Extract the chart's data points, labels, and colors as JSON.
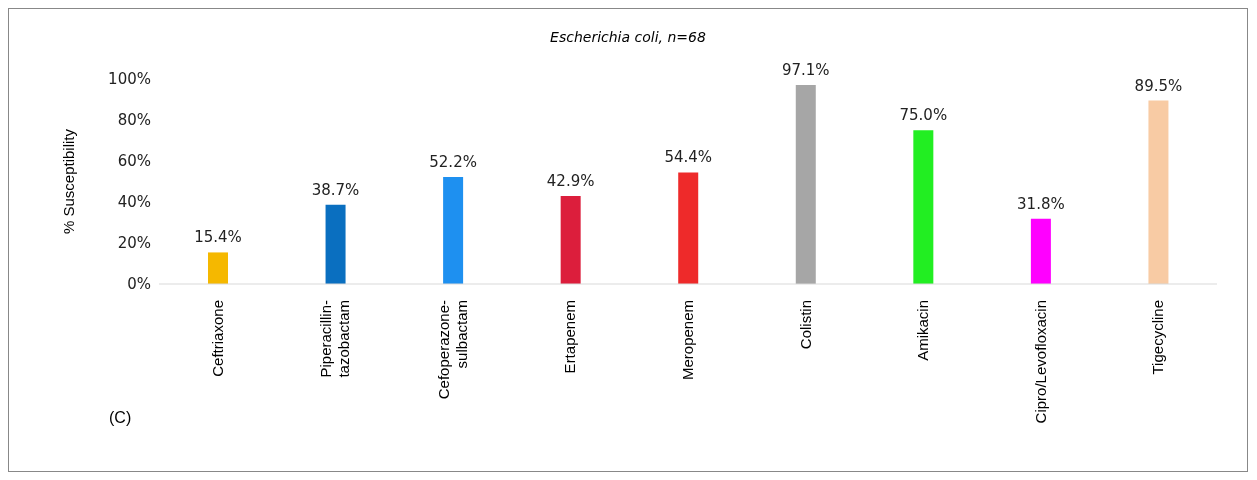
{
  "chart_data": {
    "type": "bar",
    "title": "Escherichia coli, n=68",
    "ylabel": "% Susceptibility",
    "categories": [
      "Ceftriaxone",
      "Piperacillin-tazobactam",
      "Cefoperazone-sulbactam",
      "Ertapenem",
      "Meropenem",
      "Colistin",
      "Amikacin",
      "Cipro/Levofloxacin",
      "Tigecycline"
    ],
    "values": [
      15.4,
      38.7,
      52.2,
      42.9,
      54.4,
      97.1,
      75.0,
      31.8,
      89.5
    ],
    "value_labels": [
      "15.4%",
      "38.7%",
      "52.2%",
      "42.9%",
      "54.4%",
      "97.1%",
      "75.0%",
      "31.8%",
      "89.5%"
    ],
    "colors": [
      "#f5b800",
      "#0a6fc0",
      "#1e90f0",
      "#dc1e3c",
      "#ee2a2a",
      "#a6a6a6",
      "#22ee22",
      "#ff00ff",
      "#f8cba4"
    ],
    "ylim": [
      0,
      100
    ],
    "yticks": [
      {
        "value": 0,
        "label": "0%"
      },
      {
        "value": 20,
        "label": "20%"
      },
      {
        "value": 40,
        "label": "40%"
      },
      {
        "value": 60,
        "label": "60%"
      },
      {
        "value": 80,
        "label": "80%"
      },
      {
        "value": 100,
        "label": "100%"
      }
    ],
    "grid": false,
    "annotations": [
      "(C)"
    ]
  }
}
